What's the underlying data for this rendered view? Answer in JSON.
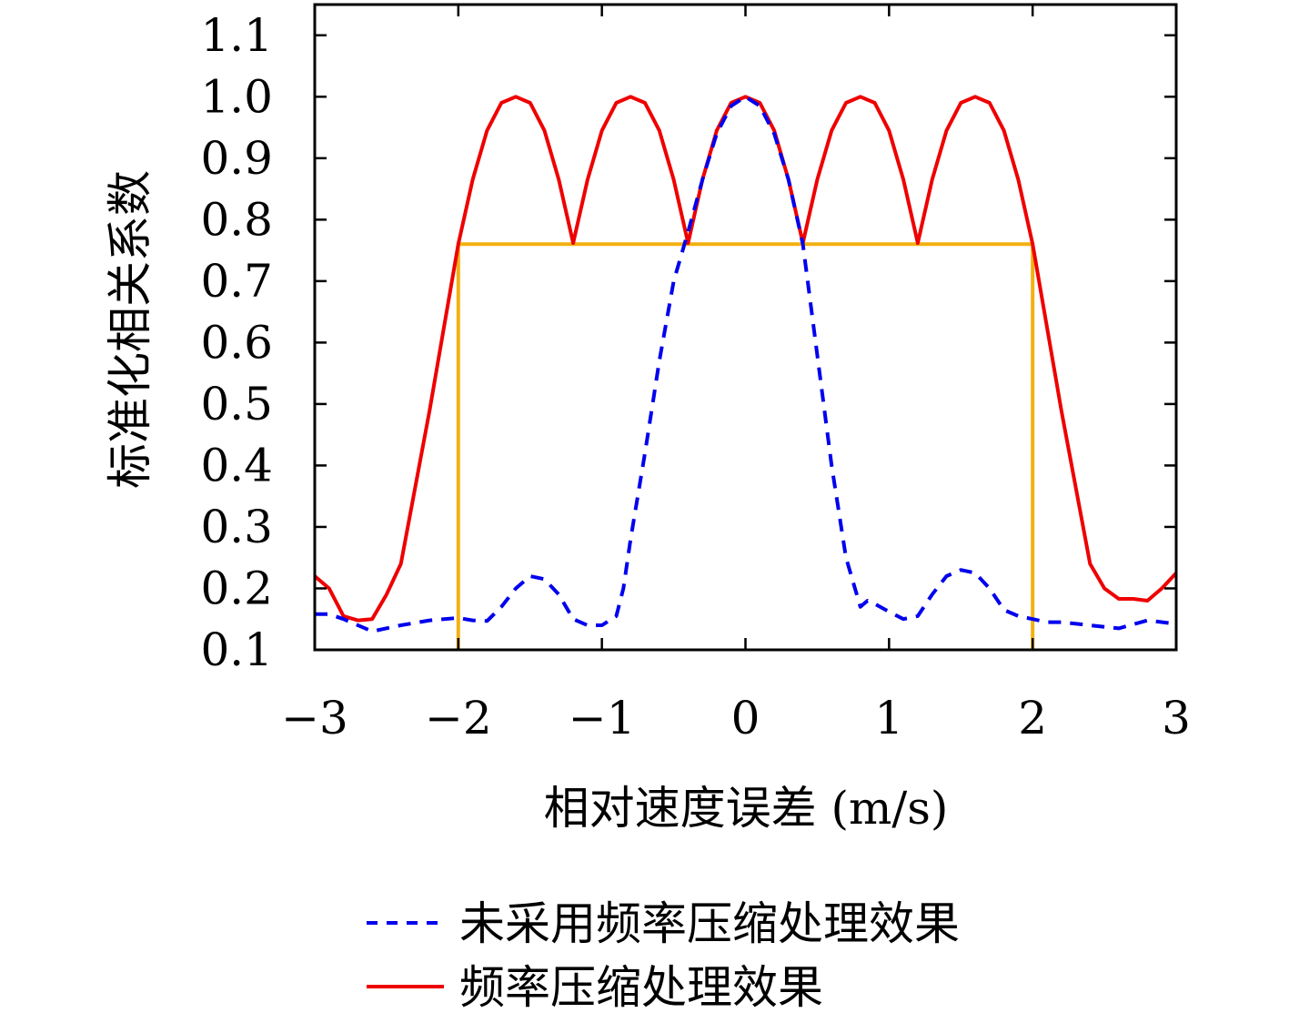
{
  "chart_data": {
    "type": "line",
    "xlabel": "相对速度误差 (m/s)",
    "ylabel": "标准化相关系数",
    "xlim": [
      -3,
      3
    ],
    "ylim": [
      0.1,
      1.15
    ],
    "xticks": [
      -3,
      -2,
      -1,
      0,
      1,
      2,
      3
    ],
    "xtick_labels": [
      "−3",
      "−2",
      "−1",
      "0",
      "1",
      "2",
      "3"
    ],
    "yticks": [
      0.1,
      0.2,
      0.3,
      0.4,
      0.5,
      0.6,
      0.7,
      0.8,
      0.9,
      1.0,
      1.1
    ],
    "ytick_labels": [
      "0.1",
      "0.2",
      "0.3",
      "0.4",
      "0.5",
      "0.6",
      "0.7",
      "0.8",
      "0.9",
      "1.0",
      "1.1"
    ],
    "grid": false,
    "legend_position": "bottom",
    "series": [
      {
        "name": "未采用频率压缩处理效果",
        "color": "#0000ee",
        "style": "dashed",
        "x": [
          -3.0,
          -2.9,
          -2.8,
          -2.6,
          -2.4,
          -2.2,
          -2.0,
          -1.9,
          -1.8,
          -1.7,
          -1.6,
          -1.5,
          -1.4,
          -1.3,
          -1.2,
          -1.1,
          -1.0,
          -0.9,
          -0.85,
          -0.8,
          -0.7,
          -0.6,
          -0.5,
          -0.4,
          -0.3,
          -0.2,
          -0.1,
          0.0,
          0.1,
          0.2,
          0.3,
          0.4,
          0.5,
          0.6,
          0.7,
          0.8,
          0.85,
          0.9,
          1.0,
          1.1,
          1.2,
          1.3,
          1.4,
          1.5,
          1.6,
          1.7,
          1.8,
          1.9,
          2.0,
          2.1,
          2.2,
          2.4,
          2.6,
          2.8,
          3.0
        ],
        "y": [
          0.158,
          0.158,
          0.15,
          0.13,
          0.14,
          0.148,
          0.152,
          0.148,
          0.147,
          0.17,
          0.2,
          0.22,
          0.215,
          0.19,
          0.15,
          0.14,
          0.14,
          0.155,
          0.2,
          0.28,
          0.42,
          0.57,
          0.7,
          0.78,
          0.865,
          0.94,
          0.985,
          1.0,
          0.985,
          0.94,
          0.865,
          0.76,
          0.58,
          0.4,
          0.25,
          0.17,
          0.18,
          0.175,
          0.162,
          0.15,
          0.155,
          0.19,
          0.22,
          0.23,
          0.225,
          0.2,
          0.165,
          0.155,
          0.15,
          0.145,
          0.145,
          0.14,
          0.135,
          0.148,
          0.142
        ]
      },
      {
        "name": "频率压缩处理效果",
        "color": "#ee0000",
        "style": "solid",
        "x": [
          -3.0,
          -2.9,
          -2.8,
          -2.7,
          -2.6,
          -2.5,
          -2.4,
          -2.2,
          -2.0,
          -1.9,
          -1.8,
          -1.7,
          -1.6,
          -1.5,
          -1.4,
          -1.3,
          -1.2,
          -1.1,
          -1.0,
          -0.9,
          -0.8,
          -0.7,
          -0.6,
          -0.5,
          -0.4,
          -0.3,
          -0.2,
          -0.1,
          0.0,
          0.1,
          0.2,
          0.3,
          0.4,
          0.5,
          0.6,
          0.7,
          0.8,
          0.9,
          1.0,
          1.1,
          1.2,
          1.3,
          1.4,
          1.5,
          1.6,
          1.7,
          1.8,
          1.9,
          2.0,
          2.2,
          2.4,
          2.5,
          2.6,
          2.7,
          2.8,
          2.9,
          3.0
        ],
        "y": [
          0.22,
          0.2,
          0.155,
          0.148,
          0.15,
          0.19,
          0.24,
          0.49,
          0.76,
          0.865,
          0.945,
          0.99,
          1.0,
          0.99,
          0.945,
          0.865,
          0.762,
          0.865,
          0.945,
          0.99,
          1.0,
          0.99,
          0.945,
          0.865,
          0.762,
          0.865,
          0.945,
          0.99,
          1.0,
          0.99,
          0.945,
          0.865,
          0.762,
          0.865,
          0.945,
          0.99,
          1.0,
          0.99,
          0.945,
          0.865,
          0.762,
          0.865,
          0.945,
          0.99,
          1.0,
          0.99,
          0.945,
          0.865,
          0.76,
          0.49,
          0.24,
          0.2,
          0.183,
          0.183,
          0.18,
          0.2,
          0.225
        ]
      }
    ],
    "annotations": [
      {
        "type": "bracket",
        "color": "#f2b111",
        "x_left": -2.0,
        "x_right": 2.0,
        "y_level": 0.76,
        "y_base": 0.1
      }
    ]
  }
}
